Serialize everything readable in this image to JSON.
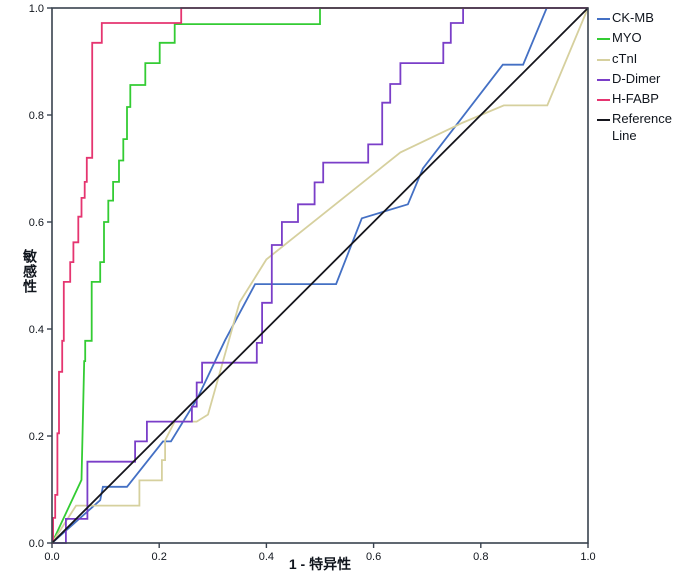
{
  "chart_data": {
    "type": "line",
    "title": "",
    "xlabel": "1 - 特异性",
    "ylabel": "敏感性",
    "xlim": [
      0,
      1
    ],
    "ylim": [
      0,
      1
    ],
    "x_ticks": [
      "0.0",
      "0.2",
      "0.4",
      "0.6",
      "0.8",
      "1.0"
    ],
    "y_ticks": [
      "0.0",
      "0.2",
      "0.4",
      "0.6",
      "0.8",
      "1.0"
    ],
    "grid": false,
    "legend_position": "right",
    "frame_color": "#39424e",
    "text_color": "#10151d",
    "background_color": "#ffffff",
    "series": [
      {
        "name": "CK-MB",
        "color": "#4470c4",
        "points": [
          [
            0,
            0
          ],
          [
            0.09,
            0.08
          ],
          [
            0.095,
            0.105
          ],
          [
            0.14,
            0.105
          ],
          [
            0.207,
            0.19
          ],
          [
            0.222,
            0.19
          ],
          [
            0.271,
            0.27
          ],
          [
            0.323,
            0.379
          ],
          [
            0.379,
            0.484
          ],
          [
            0.53,
            0.484
          ],
          [
            0.578,
            0.607
          ],
          [
            0.664,
            0.633
          ],
          [
            0.692,
            0.7
          ],
          [
            0.841,
            0.894
          ],
          [
            0.879,
            0.894
          ],
          [
            0.923,
            1
          ],
          [
            1,
            1
          ]
        ]
      },
      {
        "name": "MYO",
        "color": "#33cc33",
        "points": [
          [
            0,
            0
          ],
          [
            0.055,
            0.118
          ],
          [
            0.06,
            0.34
          ],
          [
            0.062,
            0.34
          ],
          [
            0.062,
            0.378
          ],
          [
            0.074,
            0.378
          ],
          [
            0.074,
            0.488
          ],
          [
            0.09,
            0.488
          ],
          [
            0.09,
            0.525
          ],
          [
            0.097,
            0.525
          ],
          [
            0.097,
            0.6
          ],
          [
            0.105,
            0.6
          ],
          [
            0.105,
            0.64
          ],
          [
            0.114,
            0.64
          ],
          [
            0.114,
            0.675
          ],
          [
            0.125,
            0.675
          ],
          [
            0.125,
            0.715
          ],
          [
            0.133,
            0.715
          ],
          [
            0.133,
            0.755
          ],
          [
            0.14,
            0.755
          ],
          [
            0.14,
            0.815
          ],
          [
            0.146,
            0.815
          ],
          [
            0.146,
            0.856
          ],
          [
            0.174,
            0.856
          ],
          [
            0.174,
            0.897
          ],
          [
            0.201,
            0.897
          ],
          [
            0.201,
            0.935
          ],
          [
            0.229,
            0.935
          ],
          [
            0.229,
            0.97
          ],
          [
            0.5,
            0.97
          ],
          [
            0.5,
            1
          ],
          [
            1,
            1
          ]
        ]
      },
      {
        "name": "cTnI",
        "color": "#d6d09e",
        "points": [
          [
            0,
            0
          ],
          [
            0.045,
            0.07
          ],
          [
            0.163,
            0.07
          ],
          [
            0.163,
            0.117
          ],
          [
            0.205,
            0.117
          ],
          [
            0.205,
            0.155
          ],
          [
            0.211,
            0.155
          ],
          [
            0.211,
            0.192
          ],
          [
            0.229,
            0.227
          ],
          [
            0.27,
            0.227
          ],
          [
            0.291,
            0.24
          ],
          [
            0.35,
            0.45
          ],
          [
            0.4,
            0.53
          ],
          [
            0.65,
            0.73
          ],
          [
            0.767,
            0.786
          ],
          [
            0.843,
            0.818
          ],
          [
            0.924,
            0.818
          ],
          [
            1,
            1
          ]
        ]
      },
      {
        "name": "D-Dimer",
        "color": "#7a3ec8",
        "points": [
          [
            0,
            0
          ],
          [
            0.026,
            0
          ],
          [
            0.026,
            0.045
          ],
          [
            0.066,
            0.045
          ],
          [
            0.066,
            0.152
          ],
          [
            0.155,
            0.152
          ],
          [
            0.155,
            0.19
          ],
          [
            0.177,
            0.19
          ],
          [
            0.177,
            0.227
          ],
          [
            0.261,
            0.227
          ],
          [
            0.261,
            0.255
          ],
          [
            0.27,
            0.255
          ],
          [
            0.27,
            0.3
          ],
          [
            0.28,
            0.3
          ],
          [
            0.28,
            0.337
          ],
          [
            0.382,
            0.337
          ],
          [
            0.382,
            0.374
          ],
          [
            0.392,
            0.374
          ],
          [
            0.392,
            0.449
          ],
          [
            0.41,
            0.449
          ],
          [
            0.41,
            0.557
          ],
          [
            0.429,
            0.557
          ],
          [
            0.429,
            0.6
          ],
          [
            0.459,
            0.6
          ],
          [
            0.459,
            0.633
          ],
          [
            0.49,
            0.633
          ],
          [
            0.49,
            0.674
          ],
          [
            0.506,
            0.674
          ],
          [
            0.506,
            0.711
          ],
          [
            0.59,
            0.711
          ],
          [
            0.59,
            0.745
          ],
          [
            0.616,
            0.745
          ],
          [
            0.616,
            0.823
          ],
          [
            0.631,
            0.823
          ],
          [
            0.631,
            0.858
          ],
          [
            0.65,
            0.858
          ],
          [
            0.65,
            0.897
          ],
          [
            0.73,
            0.897
          ],
          [
            0.73,
            0.935
          ],
          [
            0.744,
            0.935
          ],
          [
            0.744,
            0.972
          ],
          [
            0.767,
            0.972
          ],
          [
            0.767,
            1
          ],
          [
            1,
            1
          ]
        ]
      },
      {
        "name": "H-FABP",
        "color": "#e53570",
        "points": [
          [
            0,
            0
          ],
          [
            0.002,
            0
          ],
          [
            0.002,
            0.047
          ],
          [
            0.006,
            0.047
          ],
          [
            0.006,
            0.09
          ],
          [
            0.01,
            0.09
          ],
          [
            0.01,
            0.205
          ],
          [
            0.013,
            0.205
          ],
          [
            0.013,
            0.32
          ],
          [
            0.019,
            0.32
          ],
          [
            0.019,
            0.378
          ],
          [
            0.022,
            0.378
          ],
          [
            0.022,
            0.488
          ],
          [
            0.034,
            0.488
          ],
          [
            0.034,
            0.525
          ],
          [
            0.04,
            0.525
          ],
          [
            0.04,
            0.562
          ],
          [
            0.049,
            0.562
          ],
          [
            0.049,
            0.61
          ],
          [
            0.055,
            0.61
          ],
          [
            0.055,
            0.645
          ],
          [
            0.061,
            0.645
          ],
          [
            0.061,
            0.675
          ],
          [
            0.065,
            0.675
          ],
          [
            0.065,
            0.72
          ],
          [
            0.075,
            0.72
          ],
          [
            0.075,
            0.935
          ],
          [
            0.093,
            0.935
          ],
          [
            0.093,
            0.972
          ],
          [
            0.241,
            0.972
          ],
          [
            0.241,
            1
          ],
          [
            1,
            1
          ]
        ]
      },
      {
        "name": "Reference Line",
        "color": "#15151c",
        "points": [
          [
            0,
            0
          ],
          [
            1,
            1
          ]
        ]
      }
    ]
  }
}
